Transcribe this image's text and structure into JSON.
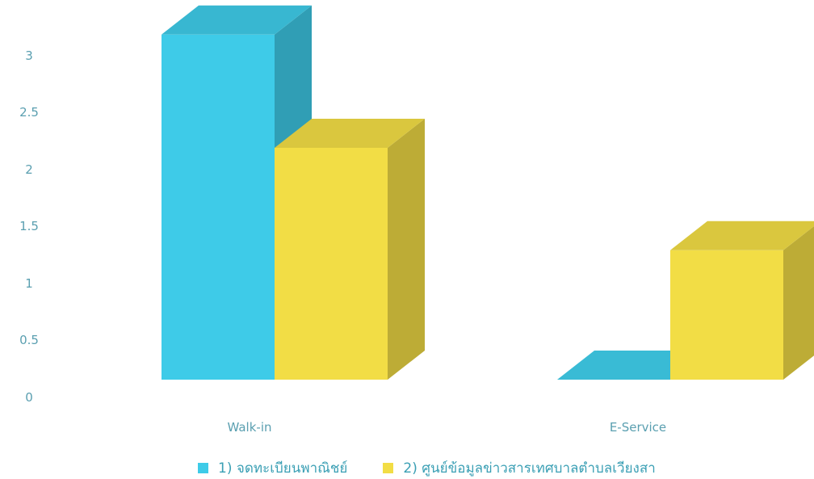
{
  "chart_data": {
    "type": "bar",
    "categories": [
      "Walk-in",
      "E-Service"
    ],
    "series": [
      {
        "name": "1) จดทะเบียนพาณิชย์",
        "values": [
          3.2,
          0
        ],
        "color": "#3ecbe8"
      },
      {
        "name": "2) ศูนย์ข้อมูลข่าวสารเทศบาลตำบลเวียงสา",
        "values": [
          2.15,
          1.2
        ],
        "color": "#f2dd45"
      }
    ],
    "yticks": [
      "0",
      "0.5",
      "1",
      "1.5",
      "2",
      "2.5",
      "3"
    ],
    "ylim": [
      0,
      3.2
    ],
    "legend": "bottom",
    "style": "3d-column"
  }
}
